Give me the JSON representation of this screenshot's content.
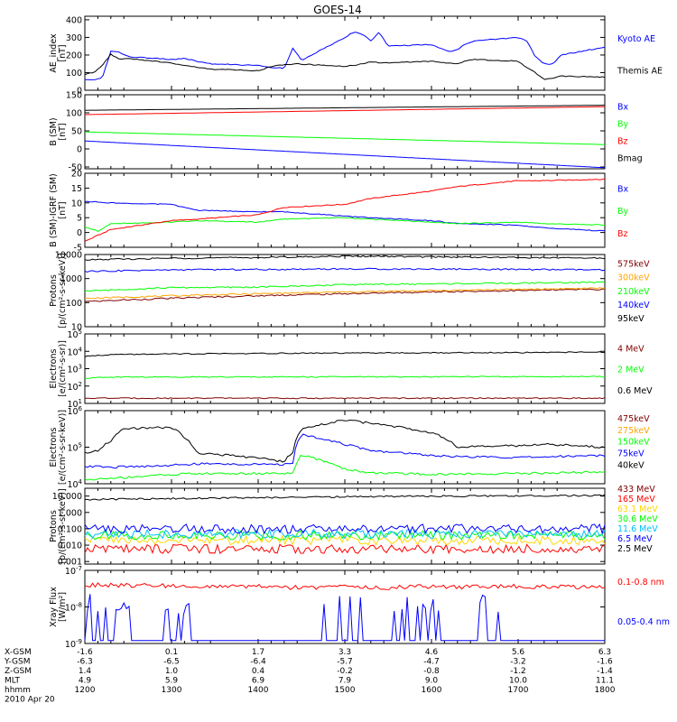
{
  "title": "GOES-14",
  "chart_data": [
    {
      "type": "line",
      "ylabel": "AE_index",
      "yunit": "[nT]",
      "yscale": "linear",
      "ylim": [
        0,
        420
      ],
      "yticks": [
        0,
        100,
        200,
        300,
        400
      ],
      "series": [
        {
          "name": "Kyoto AE",
          "color": "#0000ff",
          "x": [
            1200,
            1210,
            1220,
            1230,
            1240,
            1250,
            1300,
            1315,
            1330,
            1345,
            1400,
            1415,
            1430,
            1440,
            1450,
            1500,
            1510,
            1520,
            1530,
            1540,
            1550,
            1600,
            1610,
            1620,
            1630,
            1640,
            1650,
            1700,
            1710,
            1720,
            1730,
            1740,
            1750,
            1800
          ],
          "y": [
            60,
            60,
            70,
            220,
            215,
            190,
            175,
            180,
            165,
            150,
            140,
            130,
            125,
            240,
            170,
            300,
            330,
            320,
            280,
            330,
            250,
            260,
            240,
            220,
            230,
            265,
            280,
            300,
            280,
            190,
            150,
            150,
            200,
            245
          ]
        },
        {
          "name": "Themis AE",
          "color": "#000000",
          "x": [
            1200,
            1210,
            1220,
            1230,
            1240,
            1250,
            1300,
            1315,
            1330,
            1345,
            1400,
            1415,
            1430,
            1445,
            1500,
            1515,
            1530,
            1545,
            1600,
            1615,
            1630,
            1645,
            1700,
            1710,
            1720,
            1730,
            1740,
            1750,
            1800
          ],
          "y": [
            90,
            100,
            140,
            205,
            175,
            180,
            155,
            140,
            130,
            120,
            110,
            135,
            145,
            150,
            135,
            145,
            160,
            155,
            165,
            155,
            150,
            175,
            165,
            130,
            100,
            60,
            70,
            80,
            75
          ]
        }
      ]
    },
    {
      "type": "line",
      "ylabel": "B (SM)",
      "yunit": "[nT]",
      "yscale": "linear",
      "ylim": [
        -55,
        150
      ],
      "yticks": [
        -50,
        0,
        50,
        100,
        150
      ],
      "series": [
        {
          "name": "Bx",
          "color": "#0000ff",
          "x": [
            1200,
            1800
          ],
          "y": [
            22,
            -52
          ]
        },
        {
          "name": "By",
          "color": "#00ff00",
          "x": [
            1200,
            1800
          ],
          "y": [
            47,
            12
          ]
        },
        {
          "name": "Bz",
          "color": "#ff0000",
          "x": [
            1200,
            1800
          ],
          "y": [
            95,
            117
          ]
        },
        {
          "name": "Bmag",
          "color": "#000000",
          "x": [
            1200,
            1800
          ],
          "y": [
            107,
            121
          ]
        }
      ]
    },
    {
      "type": "line",
      "ylabel": "B (SM)-IGRF (SM)",
      "yunit": "[nT]",
      "yscale": "linear",
      "ylim": [
        -5,
        20
      ],
      "yticks": [
        -5,
        0,
        5,
        10,
        15,
        20
      ],
      "series": [
        {
          "name": "Bx",
          "color": "#0000ff",
          "x": [
            1200,
            1230,
            1300,
            1330,
            1400,
            1430,
            1500,
            1530,
            1600,
            1630,
            1700,
            1730,
            1800
          ],
          "y": [
            10.5,
            10,
            9.5,
            7.5,
            7,
            7,
            5.5,
            5,
            4,
            3,
            2.5,
            1.5,
            0.5
          ]
        },
        {
          "name": "By",
          "color": "#00ff00",
          "x": [
            1200,
            1215,
            1230,
            1300,
            1330,
            1400,
            1430,
            1500,
            1530,
            1600,
            1630,
            1700,
            1730,
            1800
          ],
          "y": [
            2,
            0.5,
            3,
            3.5,
            4,
            3.5,
            4.5,
            5,
            4.5,
            3.5,
            3,
            3.5,
            3,
            2.5
          ]
        },
        {
          "name": "Bz",
          "color": "#ff0000",
          "x": [
            1200,
            1215,
            1230,
            1300,
            1330,
            1400,
            1430,
            1500,
            1530,
            1600,
            1630,
            1700,
            1730,
            1800
          ],
          "y": [
            -3,
            -1,
            1,
            4,
            4.5,
            6,
            8.5,
            9.5,
            11.5,
            14,
            15.5,
            17.5,
            17.5,
            18
          ]
        }
      ]
    },
    {
      "type": "line",
      "ylabel": "Protons",
      "yunit": "[p/(cm²-s-sr-keV)]",
      "yscale": "log",
      "ylim": [
        10,
        10000
      ],
      "yticks": [
        10,
        100,
        1000,
        10000
      ],
      "series": [
        {
          "name": "575keV",
          "color": "#7f0000",
          "x": [
            1200,
            1800
          ],
          "y": [
            110,
            360
          ]
        },
        {
          "name": "300keV",
          "color": "#ffa500",
          "x": [
            1200,
            1800
          ],
          "y": [
            150,
            400
          ]
        },
        {
          "name": "210keV",
          "color": "#00ff00",
          "x": [
            1200,
            1300,
            1400,
            1500,
            1600,
            1700,
            1800
          ],
          "y": [
            300,
            420,
            440,
            550,
            600,
            650,
            700
          ]
        },
        {
          "name": "140keV",
          "color": "#0000ff",
          "x": [
            1200,
            1300,
            1400,
            1500,
            1600,
            1700,
            1800
          ],
          "y": [
            2000,
            2300,
            2400,
            2500,
            2500,
            2400,
            2300
          ]
        },
        {
          "name": "95keV",
          "color": "#000000",
          "x": [
            1200,
            1300,
            1400,
            1500,
            1600,
            1700,
            1800
          ],
          "y": [
            6000,
            7000,
            7500,
            8500,
            8000,
            7500,
            7000
          ]
        }
      ]
    },
    {
      "type": "line",
      "ylabel": "Electrons",
      "yunit": "[e/(cm²-s-sr)]",
      "yscale": "log",
      "ylim": [
        10,
        100000
      ],
      "ytick_exponents": [
        1,
        2,
        3,
        4,
        5
      ],
      "series": [
        {
          "name": "4 MeV",
          "color": "#7f0000",
          "x": [
            1200,
            1800
          ],
          "y": [
            20,
            20
          ]
        },
        {
          "name": "2 MeV",
          "color": "#00ff00",
          "x": [
            1200,
            1230,
            1800
          ],
          "y": [
            280,
            330,
            350
          ]
        },
        {
          "name": "0.6 MeV",
          "color": "#000000",
          "x": [
            1200,
            1230,
            1300,
            1400,
            1500,
            1600,
            1700,
            1800
          ],
          "y": [
            5000,
            6500,
            7000,
            7500,
            8000,
            8200,
            8500,
            9000
          ]
        }
      ]
    },
    {
      "type": "line",
      "ylabel": "Electrons",
      "yunit": "[e/(cm²-s-sr-keV)]",
      "yscale": "log",
      "ylim": [
        10000,
        1000000
      ],
      "ytick_exponents": [
        4,
        5,
        6
      ],
      "series": [
        {
          "name": "475keV",
          "color": "#7f0000",
          "x": [],
          "y": []
        },
        {
          "name": "275keV",
          "color": "#ffa500",
          "x": [],
          "y": []
        },
        {
          "name": "150keV",
          "color": "#00ff00",
          "x": [
            1200,
            1230,
            1300,
            1330,
            1400,
            1430,
            1440,
            1450,
            1500,
            1530,
            1600,
            1700,
            1800
          ],
          "y": [
            13000,
            14000,
            18000,
            19000,
            19000,
            19500,
            20000,
            60000,
            25000,
            20000,
            18000,
            19000,
            21000
          ]
        },
        {
          "name": "75keV",
          "color": "#0000ff",
          "x": [
            1200,
            1230,
            1300,
            1330,
            1400,
            1430,
            1440,
            1450,
            1500,
            1530,
            1600,
            1630,
            1700,
            1800
          ],
          "y": [
            30000,
            28000,
            32000,
            35000,
            34000,
            33000,
            38000,
            220000,
            120000,
            80000,
            60000,
            55000,
            52000,
            60000
          ]
        },
        {
          "name": "40keV",
          "color": "#000000",
          "x": [
            1200,
            1215,
            1230,
            1245,
            1300,
            1315,
            1330,
            1400,
            1430,
            1440,
            1450,
            1500,
            1530,
            1600,
            1630,
            1700,
            1730,
            1800
          ],
          "y": [
            70000,
            80000,
            150000,
            320000,
            350000,
            180000,
            70000,
            50000,
            40000,
            70000,
            300000,
            550000,
            450000,
            250000,
            100000,
            110000,
            120000,
            100000
          ]
        },
        {
          "name": "475keV",
          "color": "#7f0000",
          "x": [],
          "y": []
        }
      ]
    },
    {
      "type": "line",
      "ylabel": "Protons",
      "yunit": "[p/(cm²-s-sr-keV)]",
      "yscale": "log",
      "ylim": [
        0.0007,
        30
      ],
      "yticks": [
        0.001,
        0.01,
        0.1,
        1,
        10
      ],
      "yticklabels": [
        "0.001",
        "0.010",
        "0.100",
        "1.000",
        "10.000"
      ],
      "series": [
        {
          "name": "433 MeV",
          "color": "#7f0000",
          "x": [],
          "y": []
        },
        {
          "name": "165 MeV",
          "color": "#ff0000",
          "x": [
            1200,
            1800
          ],
          "y": [
            0.006,
            0.006
          ]
        },
        {
          "name": "63.1 MeV",
          "color": "#ffd700",
          "x": [
            1200,
            1800
          ],
          "y": [
            0.02,
            0.02
          ]
        },
        {
          "name": "30.6 MeV",
          "color": "#00ff00",
          "x": [
            1200,
            1800
          ],
          "y": [
            0.04,
            0.04
          ]
        },
        {
          "name": "11.6 MeV",
          "color": "#00bfff",
          "x": [
            1200,
            1800
          ],
          "y": [
            0.05,
            0.05
          ]
        },
        {
          "name": "6.5 MeV",
          "color": "#0000ff",
          "x": [
            1200,
            1800
          ],
          "y": [
            0.1,
            0.1
          ]
        },
        {
          "name": "2.5 MeV",
          "color": "#000000",
          "x": [
            1200,
            1300,
            1400,
            1500,
            1600,
            1700,
            1800
          ],
          "y": [
            6,
            7,
            8,
            9,
            10,
            10,
            11
          ]
        }
      ]
    },
    {
      "type": "line",
      "ylabel": "Xray Flux",
      "yunit": "[W/m²]",
      "yscale": "log",
      "ylim": [
        1e-09,
        1e-07
      ],
      "ytick_exponents": [
        -9,
        -8,
        -7
      ],
      "series": [
        {
          "name": "0.1-0.8 nm",
          "color": "#ff0000",
          "x": [
            1200,
            1300,
            1330,
            1400,
            1430,
            1500,
            1530,
            1600,
            1630,
            1700,
            1730,
            1800
          ],
          "y": [
            4e-08,
            3.8e-08,
            3.5e-08,
            3.6e-08,
            3.4e-08,
            3.5e-08,
            3.3e-08,
            3.6e-08,
            3.5e-08,
            3.7e-08,
            3.5e-08,
            3.6e-08
          ]
        },
        {
          "name": "0.05-0.4 nm",
          "color": "#0000ff",
          "x": [
            1200,
            1800
          ],
          "y": [
            1.2e-09,
            1.2e-09
          ]
        }
      ]
    }
  ],
  "xaxis": {
    "xlim": [
      1200,
      1800
    ],
    "xticks": [
      1200,
      1300,
      1400,
      1500,
      1600,
      1700,
      1800
    ],
    "rows": [
      {
        "label": "X-GSM",
        "values": [
          "-1.6",
          "0.1",
          "1.7",
          "3.3",
          "4.6",
          "5.6",
          "6.3"
        ]
      },
      {
        "label": "Y-GSM",
        "values": [
          "-6.3",
          "-6.5",
          "-6.4",
          "-5.7",
          "-4.7",
          "-3.2",
          "-1.6"
        ]
      },
      {
        "label": "Z-GSM",
        "values": [
          "1.4",
          "1.0",
          "0.4",
          "-0.2",
          "-0.8",
          "-1.2",
          "-1.4"
        ]
      },
      {
        "label": "MLT",
        "values": [
          "4.9",
          "5.9",
          "6.9",
          "7.9",
          "9.0",
          "10.0",
          "11.1"
        ]
      },
      {
        "label": "hhmm",
        "values": [
          "1200",
          "1300",
          "1400",
          "1500",
          "1600",
          "1700",
          "1800"
        ]
      }
    ],
    "date": "2010 Apr 20"
  }
}
